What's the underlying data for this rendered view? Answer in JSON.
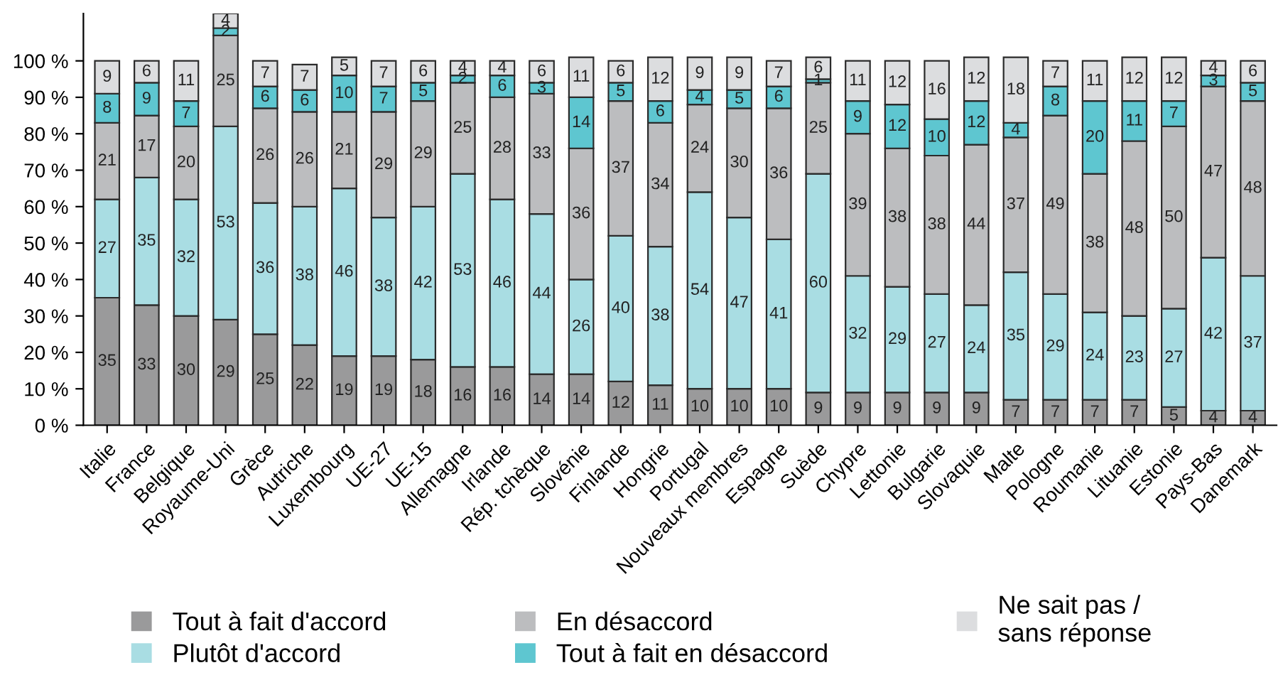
{
  "chart_data": {
    "type": "bar",
    "stacked": true,
    "data_labels": true,
    "legend": "bottom",
    "grid": false,
    "categories": [
      "Italie",
      "France",
      "Belgique",
      "Royaume-Uni",
      "Grèce",
      "Autriche",
      "Luxembourg",
      "UE-27",
      "UE-15",
      "Allemagne",
      "Irlande",
      "Rép. tchèque",
      "Slovénie",
      "Finlande",
      "Hongrie",
      "Portugal",
      "Nouveaux membres",
      "Espagne",
      "Suède",
      "Chypre",
      "Lettonie",
      "Bulgarie",
      "Slovaquie",
      "Malte",
      "Pologne",
      "Roumanie",
      "Lituanie",
      "Estonie",
      "Pays-Bas",
      "Danemark"
    ],
    "ylim": [
      0,
      113
    ],
    "yticks": [
      {
        "value": 0,
        "label": "0 %"
      },
      {
        "value": 10,
        "label": "10 %"
      },
      {
        "value": 20,
        "label": "20 %"
      },
      {
        "value": 30,
        "label": "30 %"
      },
      {
        "value": 40,
        "label": "40 %"
      },
      {
        "value": 50,
        "label": "50 %"
      },
      {
        "value": 60,
        "label": "60 %"
      },
      {
        "value": 70,
        "label": "70 %"
      },
      {
        "value": 80,
        "label": "80 %"
      },
      {
        "value": 90,
        "label": "90 %"
      },
      {
        "value": 100,
        "label": "100 %"
      }
    ],
    "series": [
      {
        "name": "Tout à fait d'accord",
        "color": "#9a9a9b",
        "values": [
          35,
          33,
          30,
          29,
          25,
          22,
          19,
          19,
          18,
          16,
          16,
          14,
          14,
          12,
          11,
          10,
          10,
          10,
          9,
          9,
          9,
          9,
          9,
          7,
          7,
          7,
          7,
          5,
          4,
          4
        ],
        "value_labels": [
          "35",
          "33",
          "30",
          "29",
          "25",
          "22",
          "19",
          "19",
          "18",
          "16",
          "16",
          "14",
          "14",
          "12",
          "11",
          "10",
          "10",
          "10",
          "9",
          "9",
          "9",
          "9",
          "9",
          "7",
          "7",
          "7",
          "7",
          "5",
          "4",
          "4"
        ]
      },
      {
        "name": "Plutôt d'accord",
        "color": "#a9dde3",
        "values": [
          27,
          35,
          32,
          53,
          36,
          38,
          46,
          38,
          42,
          53,
          46,
          44,
          26,
          40,
          38,
          54,
          47,
          41,
          60,
          32,
          29,
          27,
          24,
          35,
          29,
          24,
          23,
          27,
          42,
          37
        ],
        "value_labels": [
          "27",
          "35",
          "32",
          "53",
          "36",
          "38",
          "46",
          "38",
          "42",
          "53",
          "46",
          "44",
          "26",
          "40",
          "38",
          "54",
          "47",
          "41",
          "60",
          "32",
          "29",
          "27",
          "24",
          "35",
          "29",
          "24",
          "23",
          "27",
          "42",
          "37"
        ]
      },
      {
        "name": "En désaccord",
        "color": "#bcbdbf",
        "values": [
          21,
          17,
          20,
          25,
          26,
          26,
          21,
          29,
          29,
          25,
          28,
          33,
          36,
          37,
          34,
          24,
          30,
          36,
          25,
          39,
          38,
          38,
          44,
          37,
          49,
          38,
          48,
          50,
          47,
          48
        ],
        "value_labels": [
          "21",
          "17",
          "20",
          "25",
          "26",
          "26",
          "21",
          "29",
          "29",
          "25",
          "28",
          "33",
          "36",
          "37",
          "34",
          "24",
          "30",
          "36",
          "25",
          "39",
          "38",
          "38",
          "44",
          "37",
          "49",
          "38",
          "48",
          "50",
          "47",
          "48"
        ]
      },
      {
        "name": "Tout à fait en désaccord",
        "color": "#5ec6d0",
        "values": [
          8,
          9,
          7,
          2,
          6,
          6,
          10,
          7,
          5,
          2,
          6,
          3,
          14,
          5,
          6,
          4,
          5,
          6,
          1,
          9,
          12,
          10,
          12,
          4,
          8,
          20,
          11,
          7,
          3,
          5
        ],
        "value_labels": [
          "8",
          "9",
          "7",
          "2",
          "6",
          "6",
          "10",
          "7",
          "5",
          "2",
          "6",
          "3",
          "14",
          "5",
          "6",
          "4",
          "5",
          "6",
          "1",
          "9",
          "12",
          "10",
          "12",
          "4",
          "8",
          "20",
          "11",
          "7",
          "3",
          "5"
        ]
      },
      {
        "name": "Ne sait pas /\nsans réponse",
        "color": "#dcdddf",
        "values": [
          9,
          6,
          11,
          4,
          7,
          7,
          5,
          7,
          6,
          4,
          4,
          6,
          11,
          6,
          12,
          9,
          9,
          7,
          6,
          11,
          12,
          16,
          12,
          18,
          7,
          11,
          12,
          12,
          4,
          6
        ],
        "value_labels": [
          "9",
          "6",
          "11",
          "4",
          "7",
          "7",
          "5",
          "7",
          "6",
          "4",
          "4",
          "6",
          "11",
          "6",
          "12",
          "9",
          "9",
          "7",
          "6",
          "11",
          "12",
          "16",
          "12",
          "18",
          "7",
          "11",
          "12",
          "12",
          "4",
          "6"
        ]
      }
    ]
  }
}
